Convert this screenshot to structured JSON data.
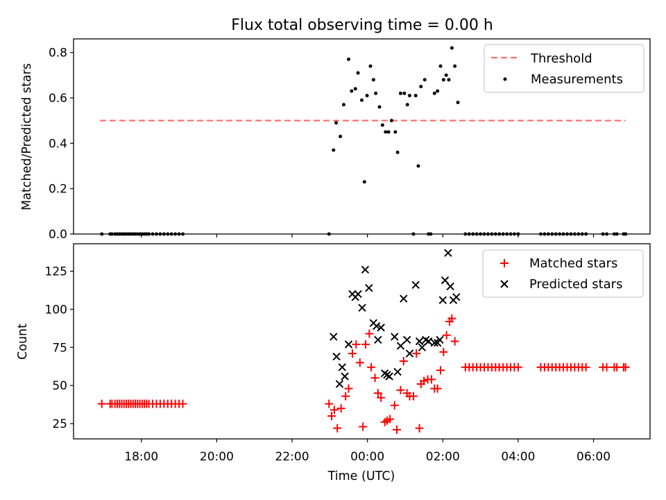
{
  "title": "Flux total observing time = 0.00 h",
  "xlabel": "Time (UTC)",
  "x_tick_labels": [
    "18:00",
    "20:00",
    "22:00",
    "00:00",
    "02:00",
    "04:00",
    "06:00"
  ],
  "x_tick_hours": [
    18,
    20,
    22,
    24,
    26,
    28,
    30
  ],
  "xlim_hours": [
    16.2,
    31.5
  ],
  "chart_data": [
    {
      "type": "scatter",
      "ylabel": "Matched/Predicted stars",
      "ylim": [
        0,
        0.86
      ],
      "y_ticks": [
        0.0,
        0.2,
        0.4,
        0.6,
        0.8
      ],
      "y_tick_labels": [
        "0.0",
        "0.2",
        "0.4",
        "0.6",
        "0.8"
      ],
      "legend_position": "top-right",
      "threshold": {
        "name": "Threshold",
        "value": 0.5,
        "x": [
          16.9,
          30.85
        ],
        "color": "#ff7070"
      },
      "series": [
        {
          "name": "Measurements",
          "color": "#000000",
          "marker": "dot",
          "points": [
            [
              16.95,
              0
            ],
            [
              17.17,
              0
            ],
            [
              17.22,
              0
            ],
            [
              17.3,
              0
            ],
            [
              17.36,
              0
            ],
            [
              17.42,
              0
            ],
            [
              17.48,
              0
            ],
            [
              17.54,
              0
            ],
            [
              17.6,
              0
            ],
            [
              17.66,
              0
            ],
            [
              17.72,
              0
            ],
            [
              17.78,
              0
            ],
            [
              17.84,
              0
            ],
            [
              17.9,
              0
            ],
            [
              17.96,
              0
            ],
            [
              18.02,
              0
            ],
            [
              18.08,
              0
            ],
            [
              18.14,
              0
            ],
            [
              18.2,
              0
            ],
            [
              18.3,
              0
            ],
            [
              18.4,
              0
            ],
            [
              18.5,
              0
            ],
            [
              18.6,
              0
            ],
            [
              18.7,
              0
            ],
            [
              18.8,
              0
            ],
            [
              18.9,
              0
            ],
            [
              19.0,
              0
            ],
            [
              19.1,
              0
            ],
            [
              22.98,
              0
            ],
            [
              23.1,
              0.37
            ],
            [
              23.17,
              0.49
            ],
            [
              23.28,
              0.43
            ],
            [
              23.37,
              0.57
            ],
            [
              23.5,
              0.77
            ],
            [
              23.58,
              0.63
            ],
            [
              23.68,
              0.64
            ],
            [
              23.75,
              0.71
            ],
            [
              23.85,
              0.59
            ],
            [
              23.92,
              0.23
            ],
            [
              23.99,
              0.61
            ],
            [
              24.08,
              0.74
            ],
            [
              24.16,
              0.68
            ],
            [
              24.22,
              0.62
            ],
            [
              24.32,
              0.56
            ],
            [
              24.4,
              0.48
            ],
            [
              24.48,
              0.45
            ],
            [
              24.56,
              0.45
            ],
            [
              24.64,
              0.5
            ],
            [
              24.74,
              0.45
            ],
            [
              24.8,
              0.36
            ],
            [
              24.88,
              0.62
            ],
            [
              24.98,
              0.62
            ],
            [
              25.06,
              0.57
            ],
            [
              25.12,
              0.61
            ],
            [
              25.22,
              0
            ],
            [
              25.28,
              0.61
            ],
            [
              25.35,
              0.3
            ],
            [
              25.42,
              0.65
            ],
            [
              25.52,
              0.68
            ],
            [
              25.62,
              0
            ],
            [
              25.68,
              0
            ],
            [
              25.78,
              0.62
            ],
            [
              25.86,
              0.63
            ],
            [
              25.94,
              0.74
            ],
            [
              26.02,
              0.68
            ],
            [
              26.09,
              0.7
            ],
            [
              26.16,
              0.68
            ],
            [
              26.24,
              0.82
            ],
            [
              26.32,
              0.74
            ],
            [
              26.4,
              0.58
            ],
            [
              26.6,
              0
            ],
            [
              26.7,
              0
            ],
            [
              26.8,
              0
            ],
            [
              26.9,
              0
            ],
            [
              27.0,
              0
            ],
            [
              27.1,
              0
            ],
            [
              27.2,
              0
            ],
            [
              27.3,
              0
            ],
            [
              27.4,
              0
            ],
            [
              27.5,
              0
            ],
            [
              27.6,
              0
            ],
            [
              27.7,
              0
            ],
            [
              27.8,
              0
            ],
            [
              27.9,
              0
            ],
            [
              28.0,
              0
            ],
            [
              28.6,
              0
            ],
            [
              28.7,
              0
            ],
            [
              28.8,
              0
            ],
            [
              28.9,
              0
            ],
            [
              29.0,
              0
            ],
            [
              29.1,
              0
            ],
            [
              29.2,
              0
            ],
            [
              29.3,
              0
            ],
            [
              29.4,
              0
            ],
            [
              29.5,
              0
            ],
            [
              29.6,
              0
            ],
            [
              29.7,
              0
            ],
            [
              29.8,
              0
            ],
            [
              30.25,
              0
            ],
            [
              30.35,
              0
            ],
            [
              30.55,
              0
            ],
            [
              30.62,
              0
            ],
            [
              30.8,
              0
            ],
            [
              30.85,
              0
            ]
          ]
        }
      ]
    },
    {
      "type": "scatter",
      "xlabel": "Time (UTC)",
      "ylabel": "Count",
      "ylim": [
        15,
        143
      ],
      "y_ticks": [
        25,
        50,
        75,
        100,
        125
      ],
      "y_tick_labels": [
        "25",
        "50",
        "75",
        "100",
        "125"
      ],
      "legend_position": "top-right",
      "series": [
        {
          "name": "Matched stars",
          "color": "#ff0000",
          "marker": "plus",
          "points": [
            [
              16.95,
              38
            ],
            [
              17.17,
              38
            ],
            [
              17.22,
              38
            ],
            [
              17.3,
              38
            ],
            [
              17.36,
              38
            ],
            [
              17.42,
              38
            ],
            [
              17.48,
              38
            ],
            [
              17.54,
              38
            ],
            [
              17.6,
              38
            ],
            [
              17.66,
              38
            ],
            [
              17.72,
              38
            ],
            [
              17.78,
              38
            ],
            [
              17.84,
              38
            ],
            [
              17.9,
              38
            ],
            [
              17.96,
              38
            ],
            [
              18.02,
              38
            ],
            [
              18.08,
              38
            ],
            [
              18.14,
              38
            ],
            [
              18.2,
              38
            ],
            [
              18.3,
              38
            ],
            [
              18.4,
              38
            ],
            [
              18.5,
              38
            ],
            [
              18.6,
              38
            ],
            [
              18.7,
              38
            ],
            [
              18.8,
              38
            ],
            [
              18.9,
              38
            ],
            [
              19.0,
              38
            ],
            [
              19.1,
              38
            ],
            [
              22.98,
              38
            ],
            [
              23.05,
              30
            ],
            [
              23.12,
              34
            ],
            [
              23.2,
              22
            ],
            [
              23.3,
              35
            ],
            [
              23.42,
              43
            ],
            [
              23.5,
              48
            ],
            [
              23.6,
              71
            ],
            [
              23.7,
              77
            ],
            [
              23.8,
              65
            ],
            [
              23.88,
              23
            ],
            [
              23.95,
              77
            ],
            [
              24.05,
              84
            ],
            [
              24.1,
              62
            ],
            [
              24.2,
              55
            ],
            [
              24.28,
              45
            ],
            [
              24.36,
              42
            ],
            [
              24.46,
              26
            ],
            [
              24.52,
              27
            ],
            [
              24.6,
              28
            ],
            [
              24.72,
              37
            ],
            [
              24.78,
              21
            ],
            [
              24.88,
              47
            ],
            [
              24.96,
              66
            ],
            [
              25.05,
              45
            ],
            [
              25.12,
              43
            ],
            [
              25.22,
              43
            ],
            [
              25.3,
              71
            ],
            [
              25.38,
              22
            ],
            [
              25.42,
              51
            ],
            [
              25.5,
              53
            ],
            [
              25.6,
              54
            ],
            [
              25.7,
              54
            ],
            [
              25.78,
              48
            ],
            [
              25.86,
              48
            ],
            [
              25.94,
              60
            ],
            [
              26.02,
              72
            ],
            [
              26.1,
              83
            ],
            [
              26.18,
              92
            ],
            [
              26.24,
              94
            ],
            [
              26.32,
              79
            ],
            [
              26.6,
              62
            ],
            [
              26.7,
              62
            ],
            [
              26.8,
              62
            ],
            [
              26.9,
              62
            ],
            [
              27.0,
              62
            ],
            [
              27.1,
              62
            ],
            [
              27.2,
              62
            ],
            [
              27.3,
              62
            ],
            [
              27.4,
              62
            ],
            [
              27.5,
              62
            ],
            [
              27.6,
              62
            ],
            [
              27.7,
              62
            ],
            [
              27.8,
              62
            ],
            [
              27.9,
              62
            ],
            [
              28.0,
              62
            ],
            [
              28.6,
              62
            ],
            [
              28.7,
              62
            ],
            [
              28.8,
              62
            ],
            [
              28.9,
              62
            ],
            [
              29.0,
              62
            ],
            [
              29.1,
              62
            ],
            [
              29.2,
              62
            ],
            [
              29.3,
              62
            ],
            [
              29.4,
              62
            ],
            [
              29.5,
              62
            ],
            [
              29.6,
              62
            ],
            [
              29.7,
              62
            ],
            [
              29.8,
              62
            ],
            [
              30.25,
              62
            ],
            [
              30.35,
              62
            ],
            [
              30.55,
              62
            ],
            [
              30.62,
              62
            ],
            [
              30.8,
              62
            ],
            [
              30.85,
              62
            ]
          ]
        },
        {
          "name": "Predicted stars",
          "color": "#000000",
          "marker": "x",
          "points": [
            [
              23.1,
              82
            ],
            [
              23.18,
              69
            ],
            [
              23.26,
              51
            ],
            [
              23.33,
              62
            ],
            [
              23.4,
              56
            ],
            [
              23.5,
              77
            ],
            [
              23.6,
              110
            ],
            [
              23.68,
              108
            ],
            [
              23.75,
              110
            ],
            [
              23.86,
              101
            ],
            [
              23.94,
              126
            ],
            [
              24.04,
              114
            ],
            [
              24.16,
              91
            ],
            [
              24.24,
              89
            ],
            [
              24.28,
              80
            ],
            [
              24.36,
              88
            ],
            [
              24.46,
              58
            ],
            [
              24.52,
              57
            ],
            [
              24.58,
              56
            ],
            [
              24.72,
              82
            ],
            [
              24.8,
              59
            ],
            [
              24.88,
              76
            ],
            [
              24.96,
              107
            ],
            [
              25.05,
              80
            ],
            [
              25.12,
              71
            ],
            [
              25.28,
              116
            ],
            [
              25.38,
              79
            ],
            [
              25.45,
              75
            ],
            [
              25.55,
              80
            ],
            [
              25.62,
              79
            ],
            [
              25.78,
              78
            ],
            [
              25.86,
              78
            ],
            [
              25.92,
              80
            ],
            [
              26.0,
              106
            ],
            [
              26.06,
              119
            ],
            [
              26.14,
              137
            ],
            [
              26.2,
              115
            ],
            [
              26.28,
              106
            ],
            [
              26.36,
              108
            ]
          ]
        }
      ]
    }
  ]
}
